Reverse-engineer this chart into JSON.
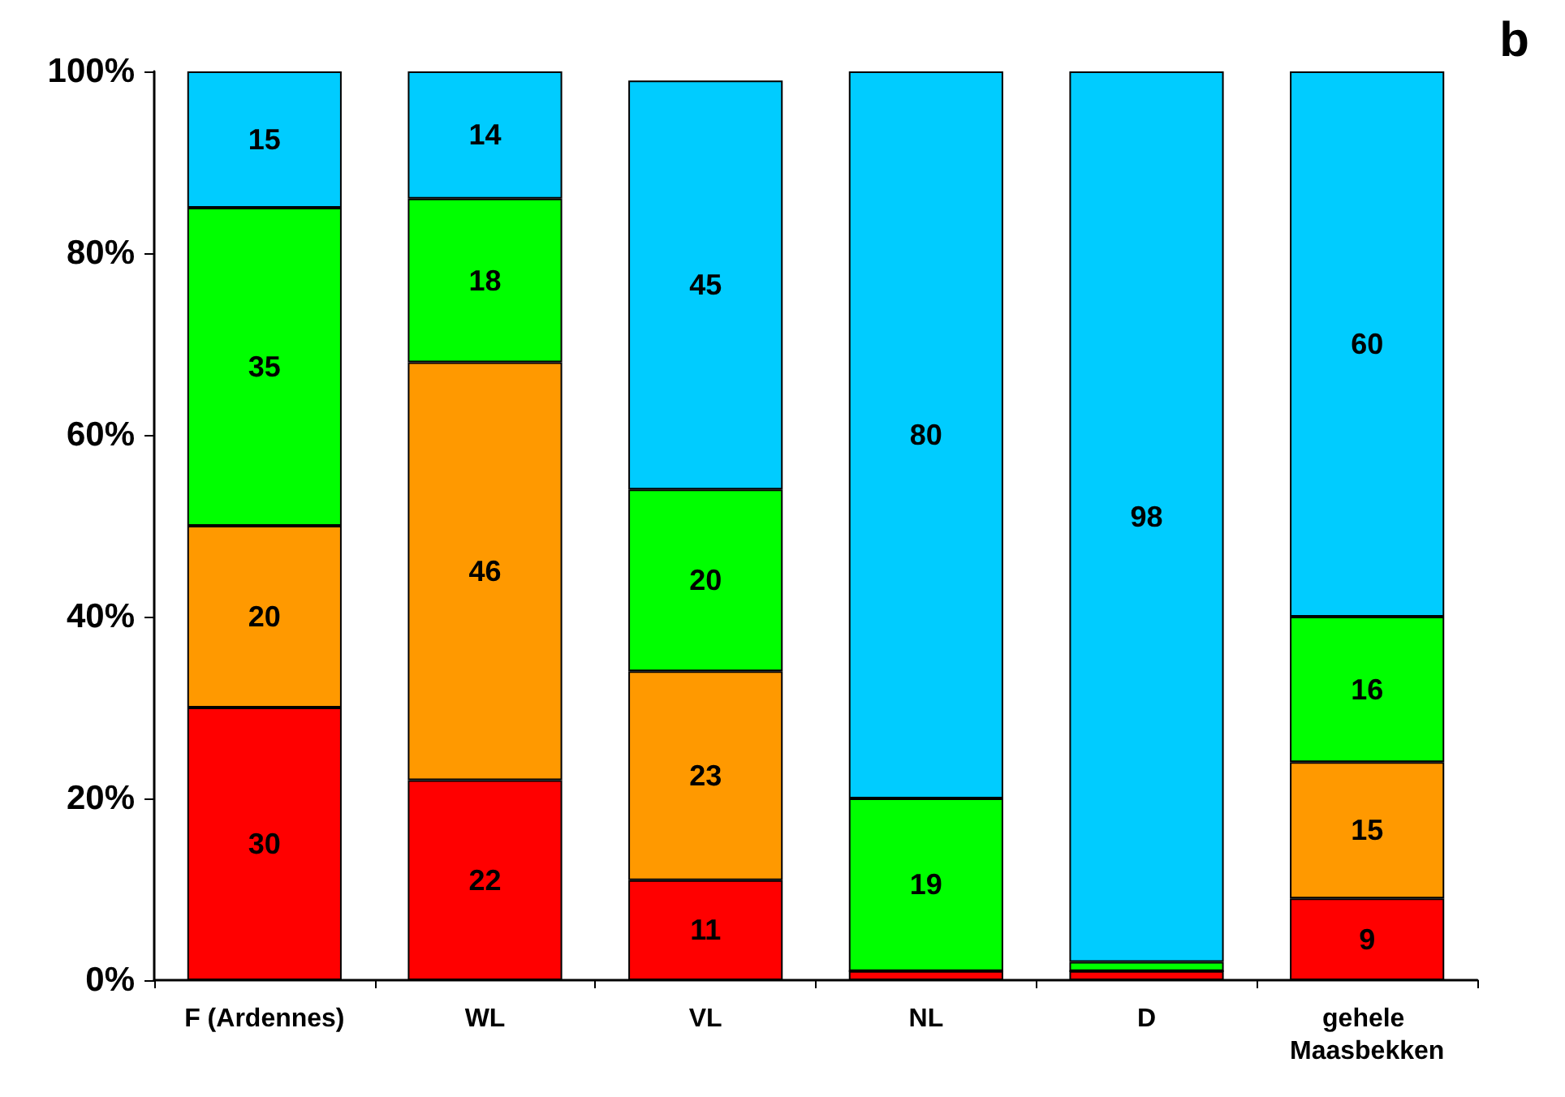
{
  "chart_data": {
    "type": "bar",
    "stacked": true,
    "categories": [
      "F (Ardennes)",
      "WL",
      "VL",
      "NL",
      "D",
      "gehele Maasbekken"
    ],
    "series": [
      {
        "color": "#ff0000",
        "values": [
          30,
          22,
          11,
          1,
          1,
          9
        ],
        "value_labels": [
          "30",
          "22",
          "11",
          null,
          null,
          "9"
        ]
      },
      {
        "color": "#ff9900",
        "values": [
          20,
          46,
          23,
          0,
          0,
          15
        ],
        "value_labels": [
          "20",
          "46",
          "23",
          null,
          null,
          "15"
        ]
      },
      {
        "color": "#00ff00",
        "values": [
          35,
          18,
          20,
          19,
          1,
          16
        ],
        "value_labels": [
          "35",
          "18",
          "20",
          "19",
          null,
          "16"
        ]
      },
      {
        "color": "#00ccff",
        "values": [
          15,
          14,
          45,
          80,
          98,
          60
        ],
        "value_labels": [
          "15",
          "14",
          "45",
          "80",
          "98",
          "60"
        ]
      }
    ],
    "ylim": [
      0,
      100
    ],
    "yticks": [
      {
        "value": 0,
        "label": "0%"
      },
      {
        "value": 20,
        "label": "20%"
      },
      {
        "value": 40,
        "label": "40%"
      },
      {
        "value": 60,
        "label": "60%"
      },
      {
        "value": 80,
        "label": "80%"
      },
      {
        "value": 100,
        "label": "100%"
      }
    ],
    "grid": false,
    "annotations": [
      "b"
    ]
  }
}
